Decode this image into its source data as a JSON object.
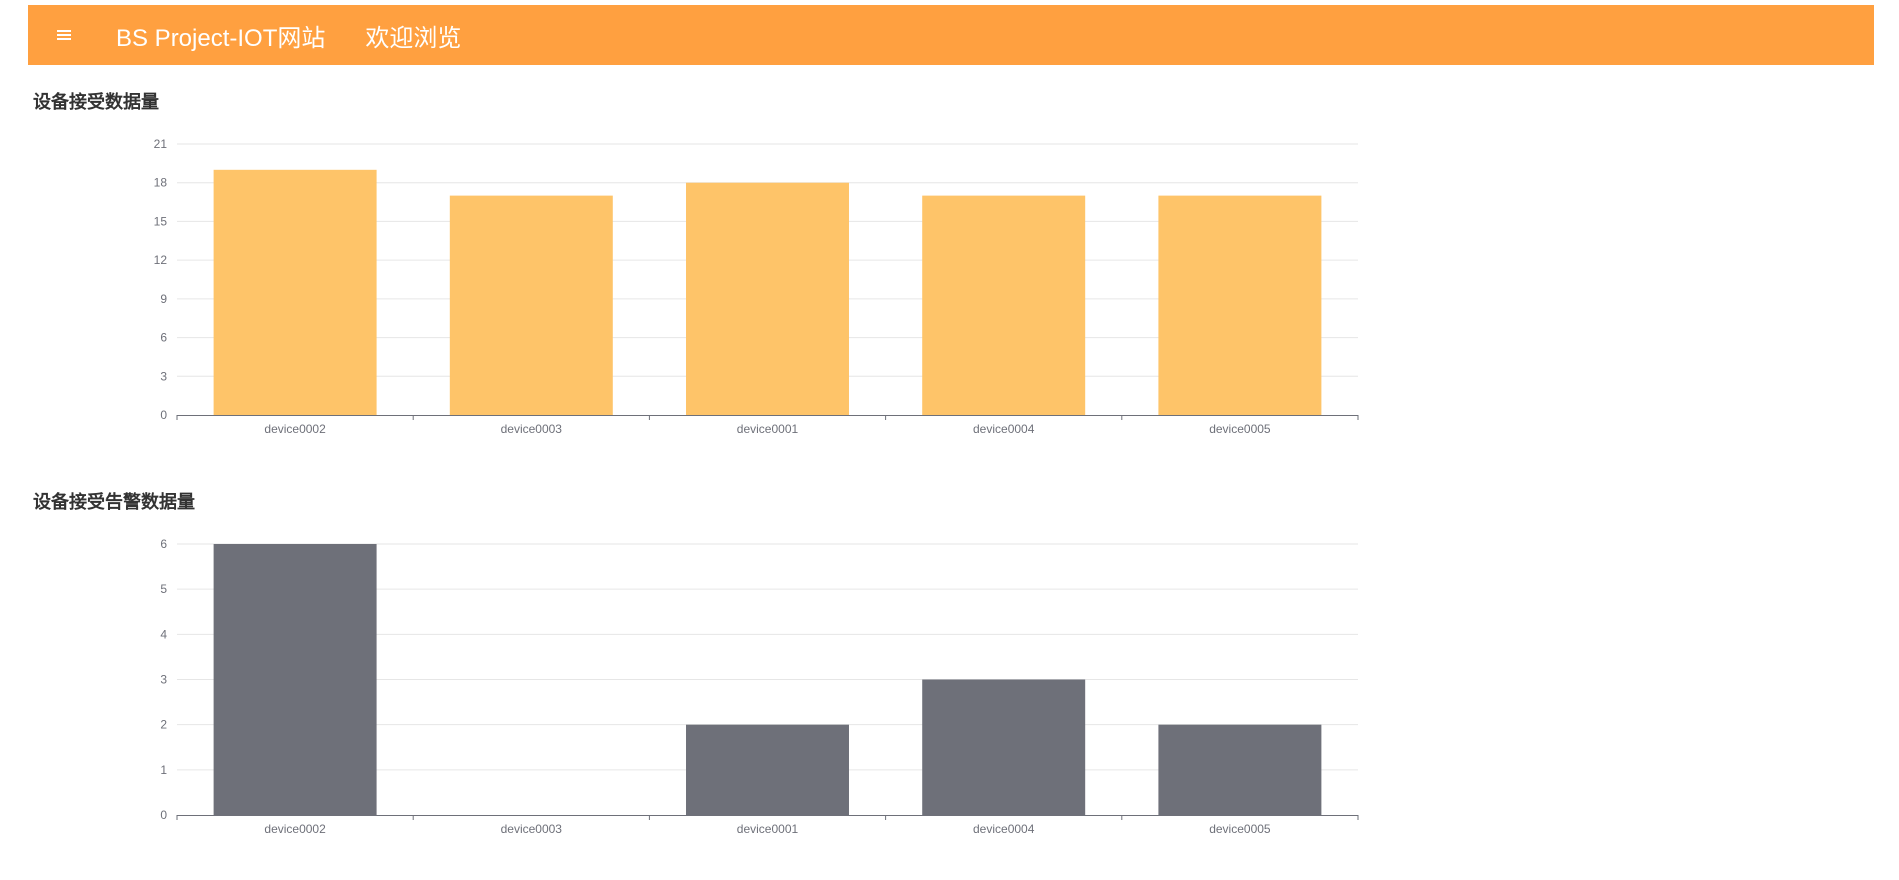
{
  "header": {
    "brand": "BS Project-IOT网站",
    "welcome": "欢迎浏览"
  },
  "icons": {
    "menu": "hamburger-menu-icon"
  },
  "colors": {
    "header": "#ffa040",
    "chart1_bar": "#fec469",
    "chart2_bar": "#6e7079",
    "grid": "#e6e6e6",
    "axis": "#6e7079"
  },
  "sections": [
    {
      "title": "设备接受数据量"
    },
    {
      "title": "设备接受告警数据量"
    }
  ],
  "chart_data": [
    {
      "type": "bar",
      "title": "",
      "categories": [
        "device0002",
        "device0003",
        "device0001",
        "device0004",
        "device0005"
      ],
      "values": [
        19,
        17,
        18,
        17,
        17
      ],
      "ylim": [
        0,
        21
      ],
      "yticks": [
        0,
        3,
        6,
        9,
        12,
        15,
        18,
        21
      ],
      "grid": true,
      "legend": "none",
      "color": "#fec469"
    },
    {
      "type": "bar",
      "title": "",
      "categories": [
        "device0002",
        "device0003",
        "device0001",
        "device0004",
        "device0005"
      ],
      "values": [
        6,
        0,
        2,
        3,
        2
      ],
      "ylim": [
        0,
        6
      ],
      "yticks": [
        0,
        1,
        2,
        3,
        4,
        5,
        6
      ],
      "grid": true,
      "legend": "none",
      "color": "#6e7079"
    }
  ]
}
